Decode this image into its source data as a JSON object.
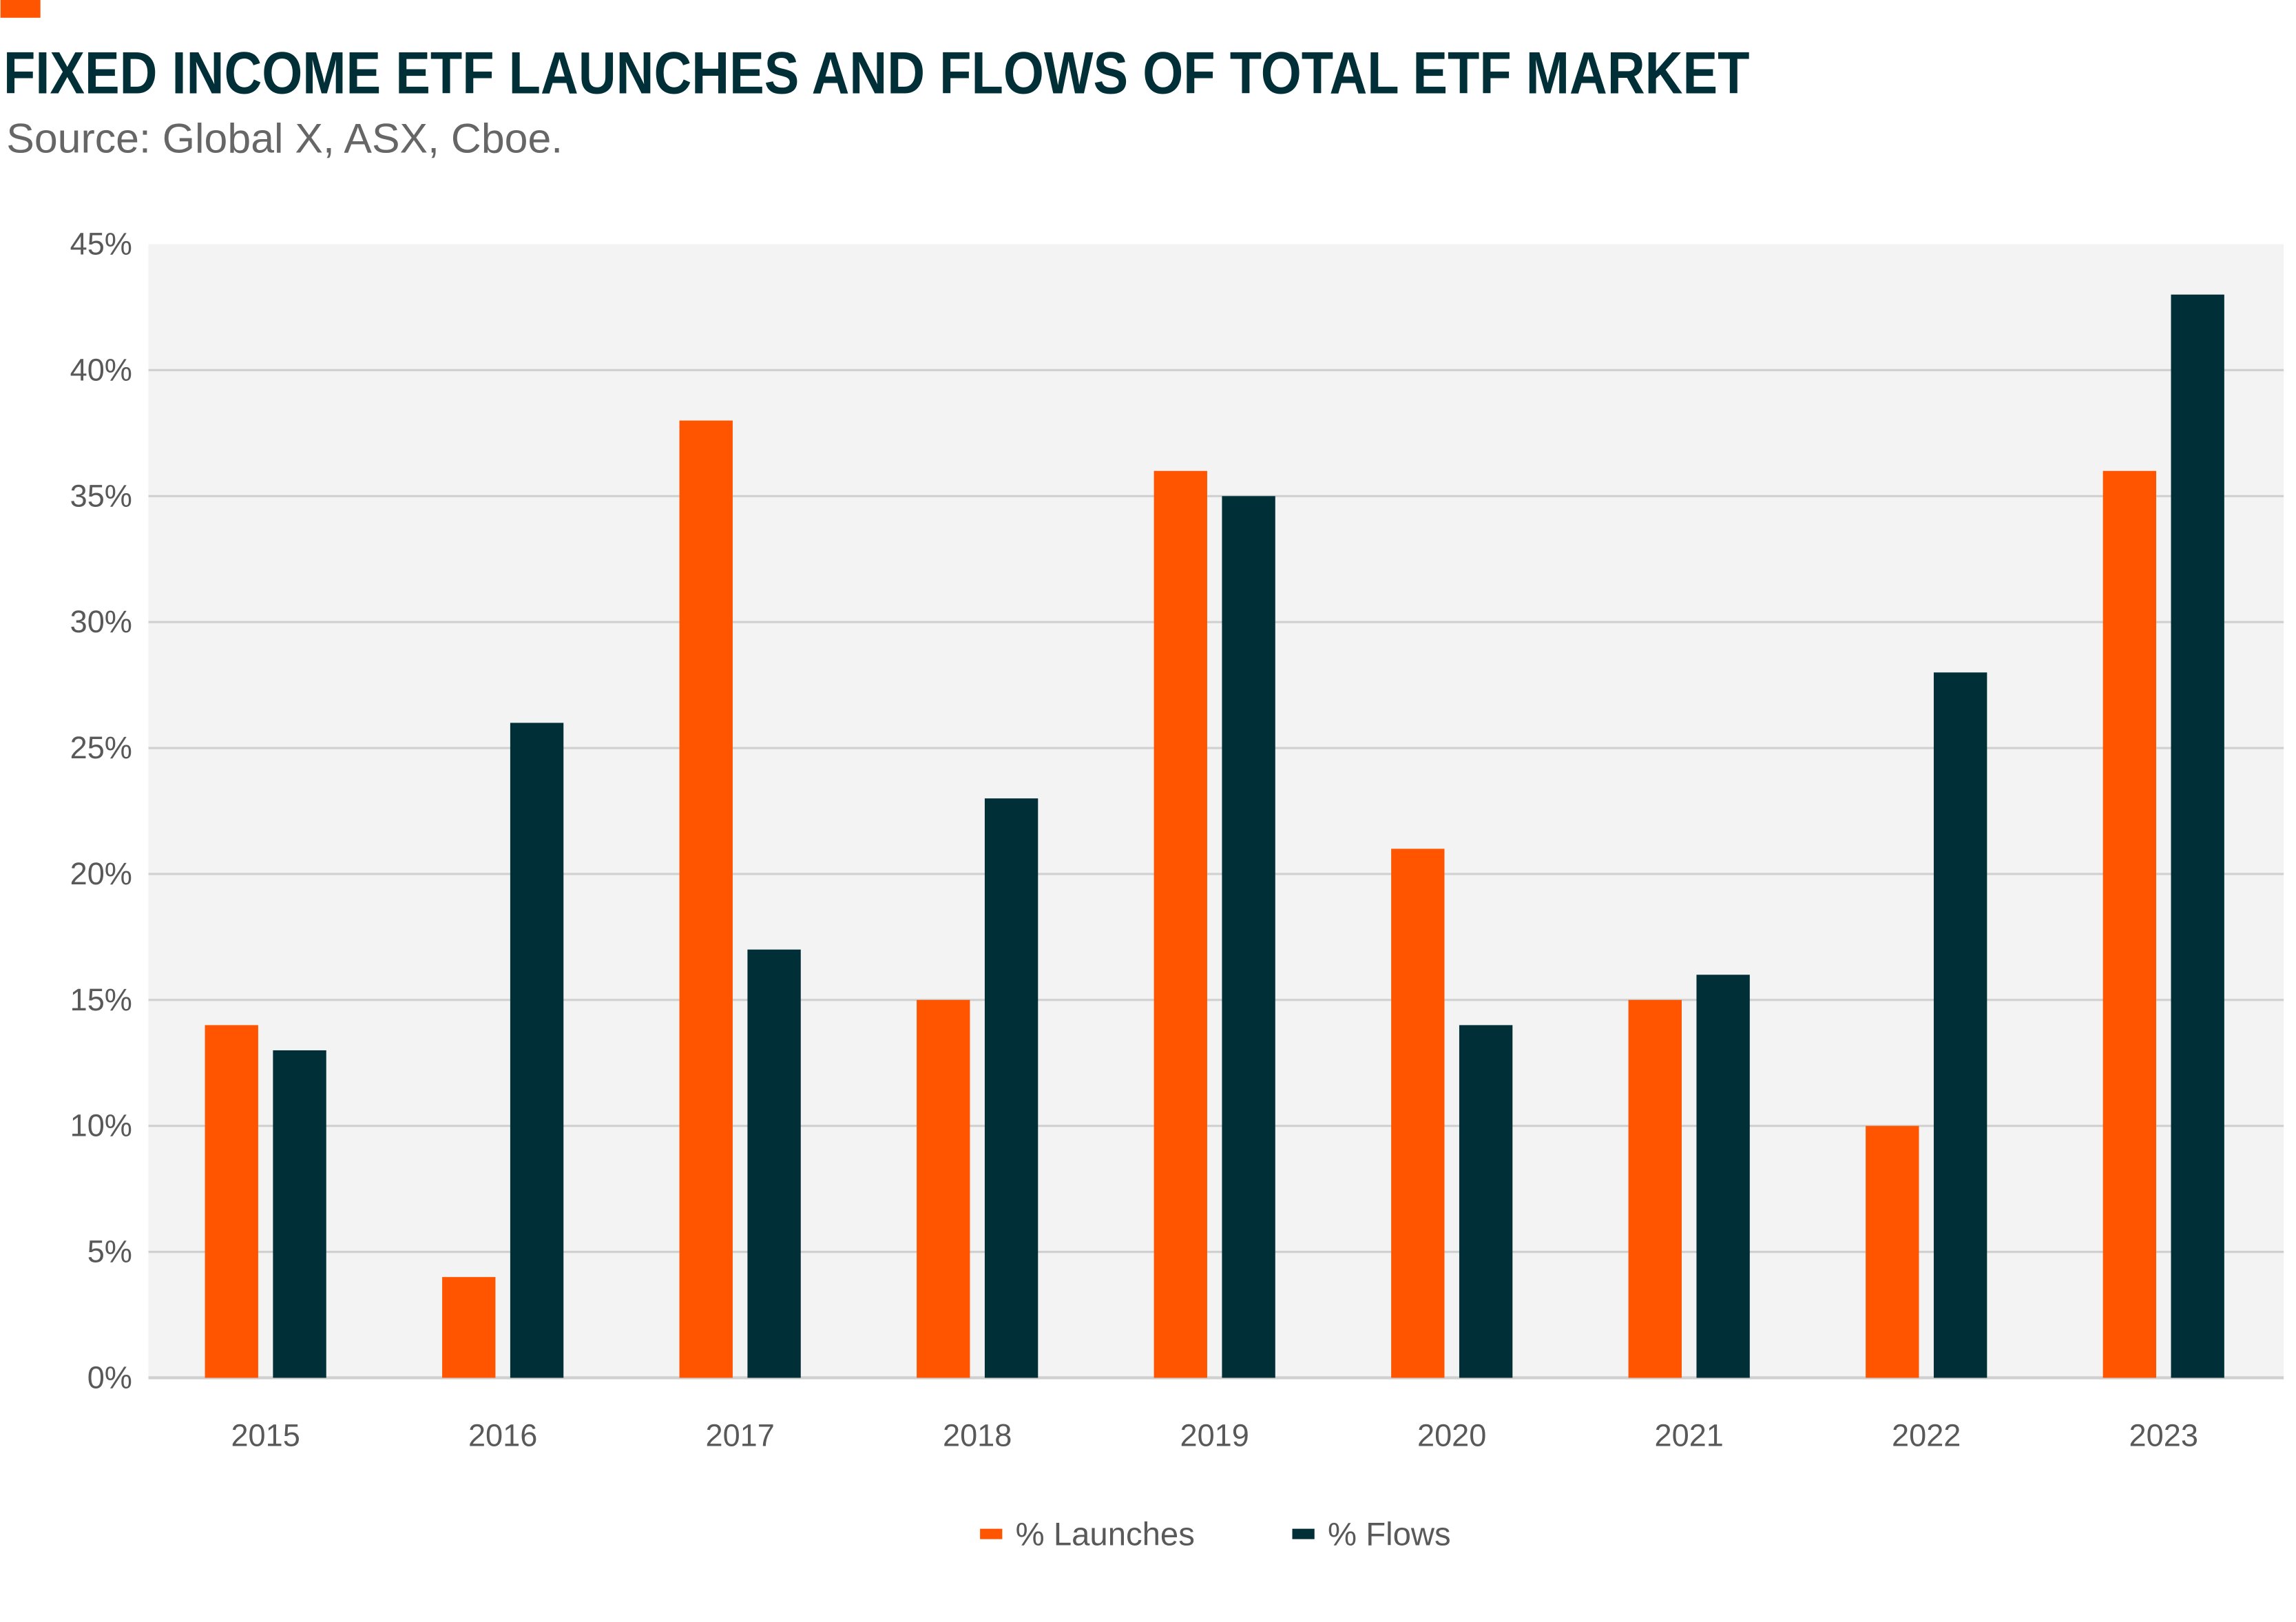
{
  "header": {
    "title": "FIXED INCOME ETF LAUNCHES AND FLOWS OF TOTAL ETF MARKET",
    "subtitle": "Source: Global X, ASX, Cboe.",
    "accent_color": "#ff5500"
  },
  "chart_data": {
    "type": "bar",
    "title": "FIXED INCOME ETF LAUNCHES AND FLOWS OF TOTAL ETF MARKET",
    "xlabel": "",
    "ylabel": "",
    "categories": [
      "2015",
      "2016",
      "2017",
      "2018",
      "2019",
      "2020",
      "2021",
      "2022",
      "2023"
    ],
    "series": [
      {
        "name": "% Launches",
        "color": "#ff5500",
        "values": [
          14,
          4,
          38,
          15,
          36,
          21,
          15,
          10,
          36
        ]
      },
      {
        "name": "% Flows",
        "color": "#002f37",
        "values": [
          13,
          26,
          17,
          23,
          35,
          14,
          16,
          28,
          43
        ]
      }
    ],
    "ylim": [
      0,
      45
    ],
    "yticks": [
      0,
      5,
      10,
      15,
      20,
      25,
      30,
      35,
      40,
      45
    ],
    "ytick_labels": [
      "0%",
      "5%",
      "10%",
      "15%",
      "20%",
      "25%",
      "30%",
      "35%",
      "40%",
      "45%"
    ],
    "grid": true,
    "plot_background": "#f3f3f3",
    "legend_position": "bottom"
  }
}
